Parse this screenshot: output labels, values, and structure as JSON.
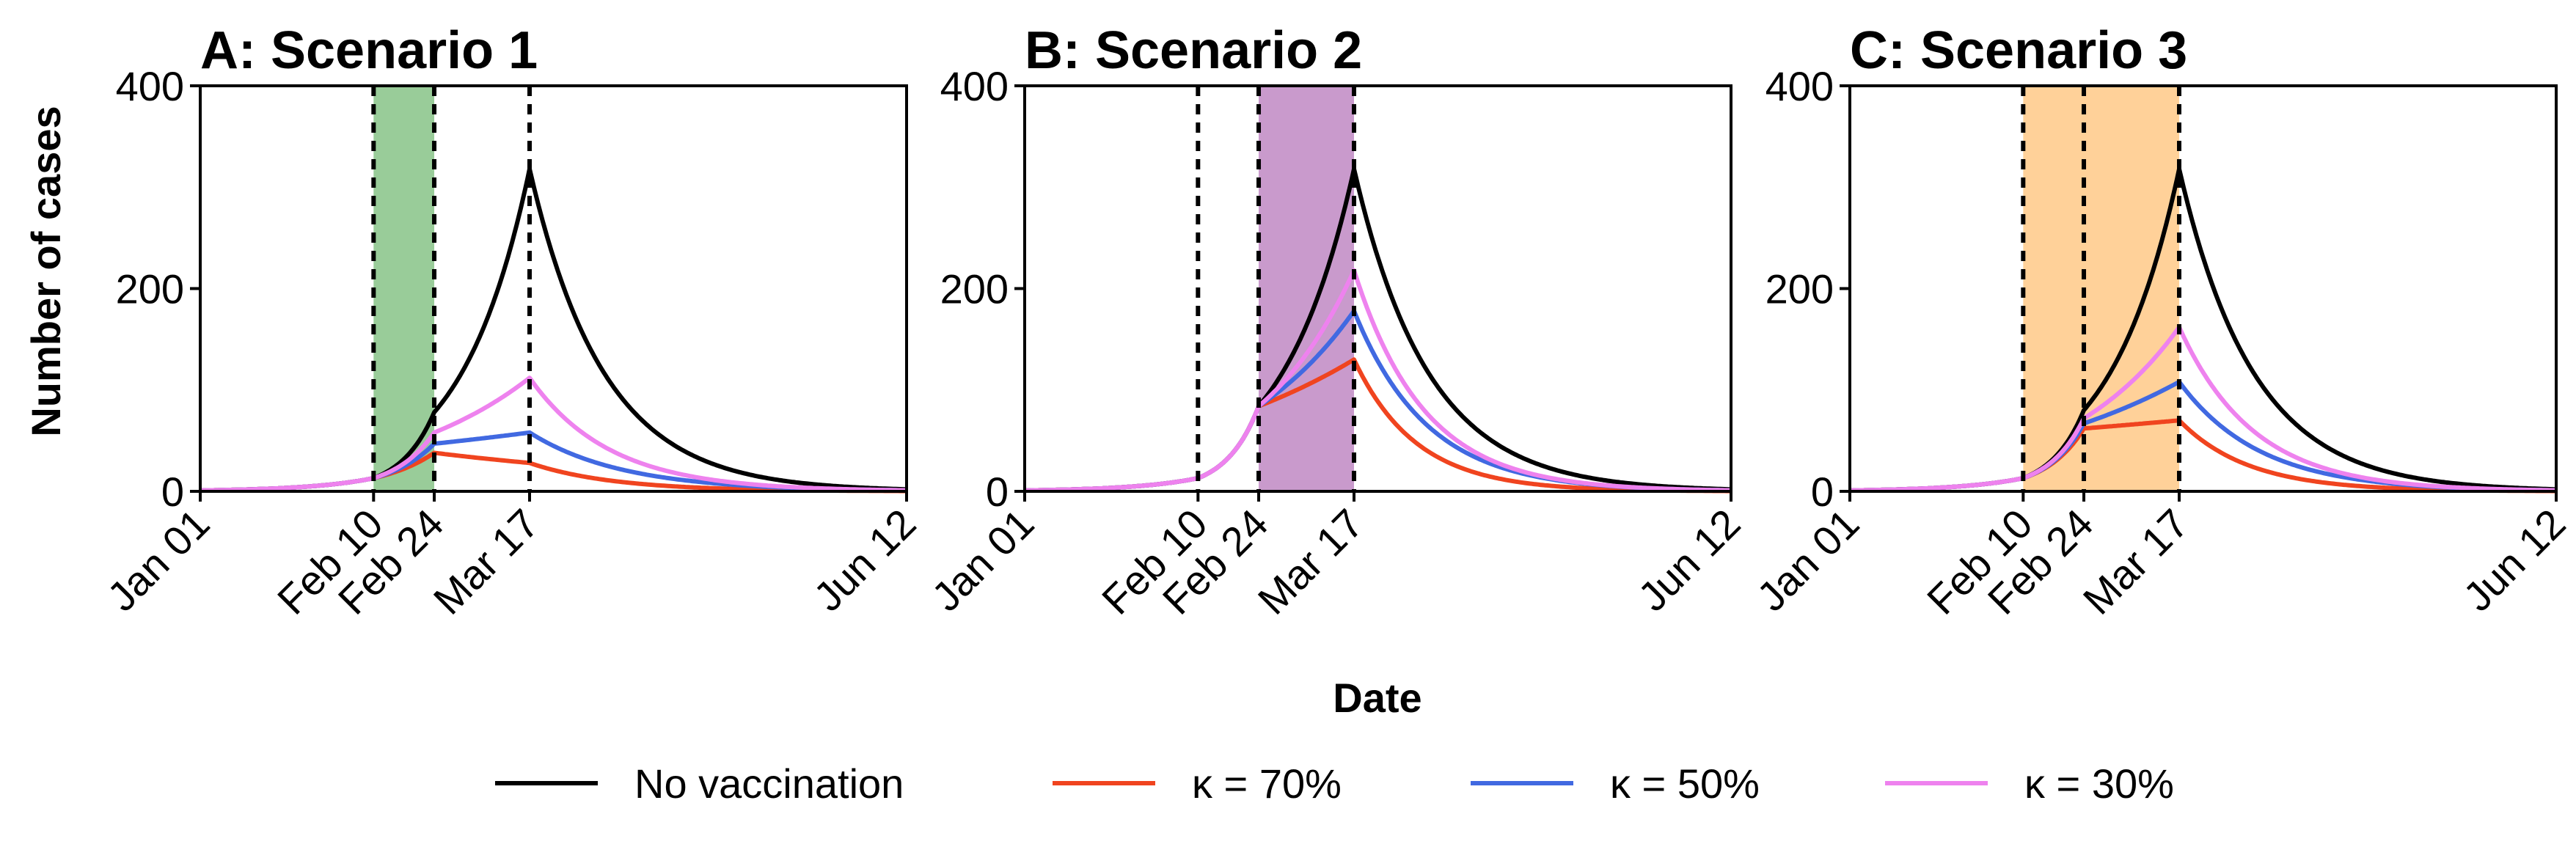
{
  "figure": {
    "xlabel": "Date",
    "ylabel": "Number of cases"
  },
  "legend": {
    "placement": "bottom-center",
    "entries": [
      {
        "label": "No vaccination",
        "color": "#000000"
      },
      {
        "label": "κ = 70%",
        "color": "#f0441f"
      },
      {
        "label": "κ = 50%",
        "color": "#4169e1"
      },
      {
        "label": "κ = 30%",
        "color": "#ee82ee"
      }
    ]
  },
  "colors": {
    "scenario1_shade": "#99cc99",
    "scenario2_shade": "#c99acc",
    "scenario3_shade": "#ffd199"
  },
  "chart_data": [
    {
      "type": "line",
      "title": "A: Scenario 1",
      "ylabel": "Number of cases",
      "xlabel": "Date",
      "x_ticks": [
        "Jan 01",
        "Feb 10",
        "Feb 24",
        "Mar 17",
        "Jun 12"
      ],
      "x_range": [
        "2020-01-01",
        "2020-06-12"
      ],
      "ylim": [
        0,
        400
      ],
      "y_ticks": [
        0,
        200,
        400
      ],
      "grid": false,
      "vertical_lines": [
        "2020-02-10",
        "2020-02-24",
        "2020-03-17"
      ],
      "shaded_window": {
        "start": "2020-02-10",
        "end": "2020-02-24",
        "color": "#99cc99"
      },
      "peak_date": "2020-03-17",
      "series": [
        {
          "name": "No vaccination",
          "color": "#000000",
          "values_at": {
            "2020-02-10": 13,
            "2020-02-24": 78,
            "2020-03-17": 318,
            "2020-06-12": 2
          }
        },
        {
          "name": "κ = 70%",
          "color": "#f0441f",
          "values_at": {
            "2020-02-10": 13,
            "2020-02-24": 38,
            "2020-03-17": 28,
            "2020-06-12": 0
          }
        },
        {
          "name": "κ = 50%",
          "color": "#4169e1",
          "values_at": {
            "2020-02-10": 13,
            "2020-02-24": 47,
            "2020-03-17": 58,
            "2020-06-12": 1
          }
        },
        {
          "name": "κ = 30%",
          "color": "#ee82ee",
          "values_at": {
            "2020-02-10": 13,
            "2020-02-24": 58,
            "2020-03-17": 112,
            "2020-06-12": 1
          }
        }
      ]
    },
    {
      "type": "line",
      "title": "B: Scenario 2",
      "x_ticks": [
        "Jan 01",
        "Feb 10",
        "Feb 24",
        "Mar 17",
        "Jun 12"
      ],
      "x_range": [
        "2020-01-01",
        "2020-06-12"
      ],
      "ylim": [
        0,
        400
      ],
      "y_ticks": [
        0,
        200,
        400
      ],
      "grid": false,
      "vertical_lines": [
        "2020-02-10",
        "2020-02-24",
        "2020-03-17"
      ],
      "shaded_window": {
        "start": "2020-02-24",
        "end": "2020-03-17",
        "color": "#c99acc"
      },
      "peak_date": "2020-03-17",
      "series": [
        {
          "name": "No vaccination",
          "color": "#000000",
          "values_at": {
            "2020-02-10": 13,
            "2020-02-24": 84,
            "2020-03-17": 318,
            "2020-06-12": 2
          }
        },
        {
          "name": "κ = 70%",
          "color": "#f0441f",
          "values_at": {
            "2020-02-10": 13,
            "2020-02-24": 84,
            "2020-03-17": 130,
            "2020-06-12": 0
          }
        },
        {
          "name": "κ = 50%",
          "color": "#4169e1",
          "values_at": {
            "2020-02-10": 13,
            "2020-02-24": 84,
            "2020-03-17": 178,
            "2020-06-12": 1
          }
        },
        {
          "name": "κ = 30%",
          "color": "#ee82ee",
          "values_at": {
            "2020-02-10": 13,
            "2020-02-24": 84,
            "2020-03-17": 218,
            "2020-06-12": 1
          }
        }
      ]
    },
    {
      "type": "line",
      "title": "C: Scenario 3",
      "x_ticks": [
        "Jan 01",
        "Feb 10",
        "Feb 24",
        "Mar 17",
        "Jun 12"
      ],
      "x_range": [
        "2020-01-01",
        "2020-06-12"
      ],
      "ylim": [
        0,
        400
      ],
      "y_ticks": [
        0,
        200,
        400
      ],
      "grid": false,
      "vertical_lines": [
        "2020-02-10",
        "2020-02-24",
        "2020-03-17"
      ],
      "shaded_window": {
        "start": "2020-02-10",
        "end": "2020-03-17",
        "color": "#ffd199"
      },
      "peak_date": "2020-03-17",
      "series": [
        {
          "name": "No vaccination",
          "color": "#000000",
          "values_at": {
            "2020-02-10": 13,
            "2020-02-24": 80,
            "2020-03-17": 318,
            "2020-06-12": 2
          }
        },
        {
          "name": "κ = 70%",
          "color": "#f0441f",
          "values_at": {
            "2020-02-10": 13,
            "2020-02-24": 62,
            "2020-03-17": 70,
            "2020-06-12": 0
          }
        },
        {
          "name": "κ = 50%",
          "color": "#4169e1",
          "values_at": {
            "2020-02-10": 13,
            "2020-02-24": 67,
            "2020-03-17": 108,
            "2020-06-12": 1
          }
        },
        {
          "name": "κ = 30%",
          "color": "#ee82ee",
          "values_at": {
            "2020-02-10": 13,
            "2020-02-24": 72,
            "2020-03-17": 162,
            "2020-06-12": 1
          }
        }
      ]
    }
  ]
}
